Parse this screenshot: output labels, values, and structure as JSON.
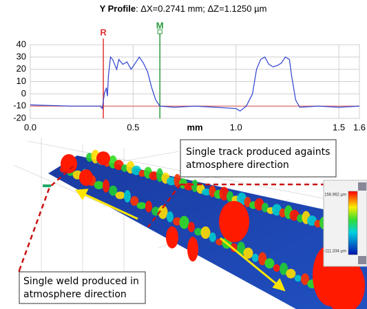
{
  "chart_data": {
    "type": "line",
    "title": "Y Profile",
    "title_detail": ": ΔX=0.2741 mm; ΔZ=1.1250 µm",
    "x_label": "mm",
    "x": [
      0,
      0.1,
      0.2,
      0.3,
      0.34,
      0.35,
      0.36,
      0.37,
      0.375,
      0.38,
      0.39,
      0.4,
      0.42,
      0.43,
      0.45,
      0.47,
      0.49,
      0.51,
      0.53,
      0.55,
      0.57,
      0.59,
      0.61,
      0.63,
      0.7,
      0.8,
      0.9,
      1.0,
      1.02,
      1.05,
      1.08,
      1.1,
      1.12,
      1.14,
      1.16,
      1.18,
      1.2,
      1.22,
      1.24,
      1.26,
      1.27,
      1.29,
      1.31,
      1.4,
      1.5,
      1.6
    ],
    "series": [
      {
        "color": "#2a3fd0",
        "values": [
          -9,
          -9.5,
          -10,
          -10,
          -10,
          -12,
          0,
          5,
          -2,
          15,
          30,
          28,
          20,
          28,
          24,
          26,
          20,
          25,
          30,
          25,
          18,
          5,
          -5,
          -10,
          -11,
          -10,
          -11,
          -12,
          -14,
          -10,
          0,
          20,
          28,
          30,
          24,
          22,
          23,
          25,
          30,
          28,
          15,
          -5,
          -11,
          -10,
          -11,
          -10
        ]
      }
    ],
    "xlim": [
      0,
      1.6
    ],
    "ylim": [
      -20,
      40
    ],
    "xticks": [
      {
        "value": 0,
        "label": "0.0"
      },
      0.5,
      {
        "value": 1,
        "label": "1.0"
      },
      1.5,
      1.6
    ],
    "yticks": [
      -20,
      -10,
      0,
      10,
      20,
      30,
      40
    ],
    "grid": true,
    "reference_line": {
      "y": -10,
      "color": "#e06060"
    },
    "markers": [
      {
        "label": "R",
        "x": 0.355,
        "color": "#e03030"
      },
      {
        "label": "M",
        "x": 0.63,
        "color": "#2a9a3a"
      }
    ]
  },
  "annotations": [
    "Single track produced againts atmosphere direction",
    "Single weld produced in atmosphere direction"
  ],
  "colorbar": {
    "max_label": "156.962 µm",
    "min_label": "-111.334 µm"
  }
}
